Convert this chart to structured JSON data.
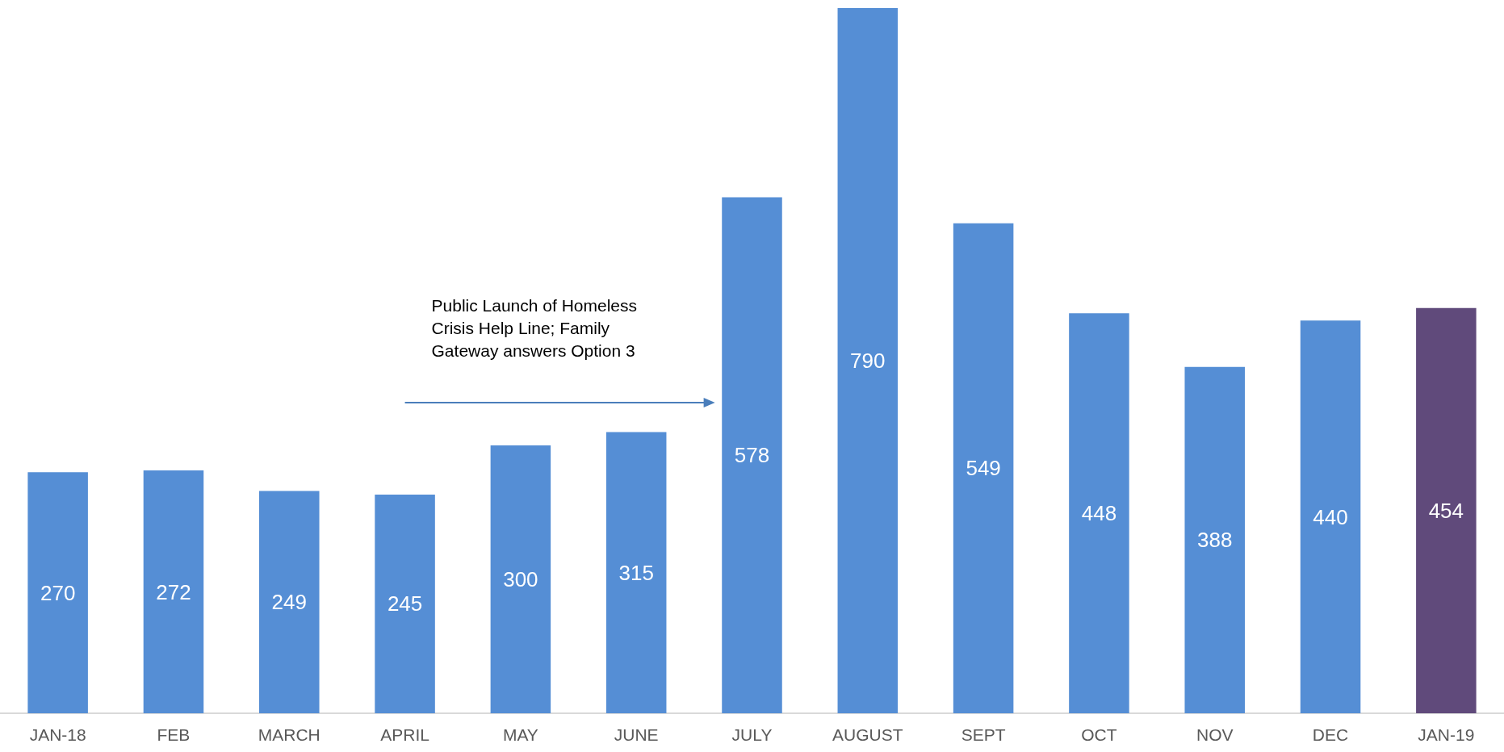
{
  "chart_data": {
    "type": "bar",
    "categories": [
      "JAN-18",
      "FEB",
      "MARCH",
      "APRIL",
      "MAY",
      "JUNE",
      "JULY",
      "AUGUST",
      "SEPT",
      "OCT",
      "NOV",
      "DEC",
      "JAN-19"
    ],
    "values": [
      270,
      272,
      249,
      245,
      300,
      315,
      578,
      790,
      549,
      448,
      388,
      440,
      454
    ],
    "colors": [
      "#558ed5",
      "#558ed5",
      "#558ed5",
      "#558ed5",
      "#558ed5",
      "#558ed5",
      "#558ed5",
      "#558ed5",
      "#558ed5",
      "#558ed5",
      "#558ed5",
      "#558ed5",
      "#604a7b"
    ],
    "data_labels": true,
    "annotations": [
      "Public Launch of Homeless Crisis Help Line; Family Gateway answers Option 3"
    ],
    "grid": false
  }
}
